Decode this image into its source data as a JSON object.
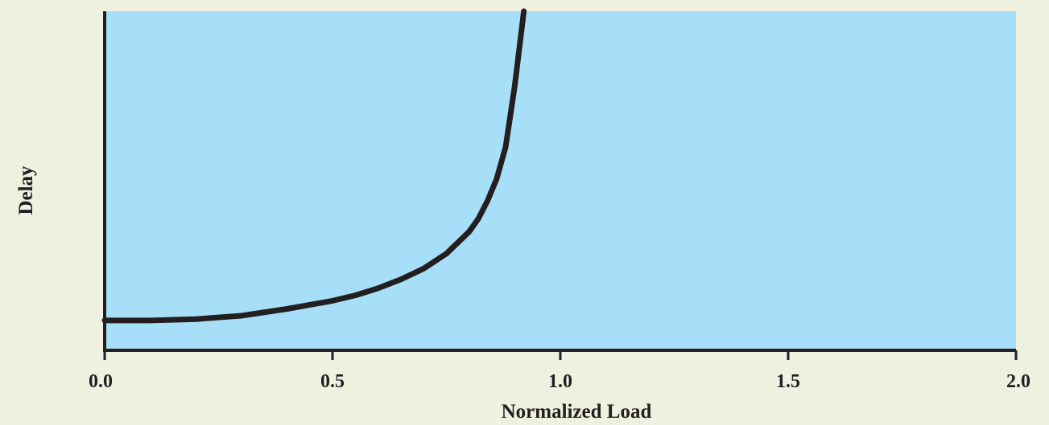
{
  "chart_data": {
    "type": "line",
    "title": "",
    "xlabel": "Normalized Load",
    "ylabel": "Delay",
    "xlim": [
      0.0,
      2.0
    ],
    "ylim": [
      0,
      1
    ],
    "x_ticks": [
      "0.0",
      "0.5",
      "1.0",
      "1.5",
      "2.0"
    ],
    "y_ticks": [],
    "grid": false,
    "legend": "none",
    "series": [
      {
        "x": [
          0.0,
          0.1,
          0.2,
          0.3,
          0.4,
          0.5,
          0.55,
          0.6,
          0.65,
          0.7,
          0.75,
          0.8,
          0.82,
          0.84,
          0.86,
          0.88,
          0.9,
          0.92
        ],
        "y": [
          0.088,
          0.088,
          0.092,
          0.102,
          0.122,
          0.146,
          0.162,
          0.183,
          0.209,
          0.241,
          0.285,
          0.35,
          0.388,
          0.44,
          0.505,
          0.6,
          0.78,
          1.0
        ]
      }
    ],
    "colors": {
      "plot_background": "#a8dff8",
      "page_background": "#eef0e0",
      "line": "#231f20",
      "axes": "#231f20"
    }
  }
}
